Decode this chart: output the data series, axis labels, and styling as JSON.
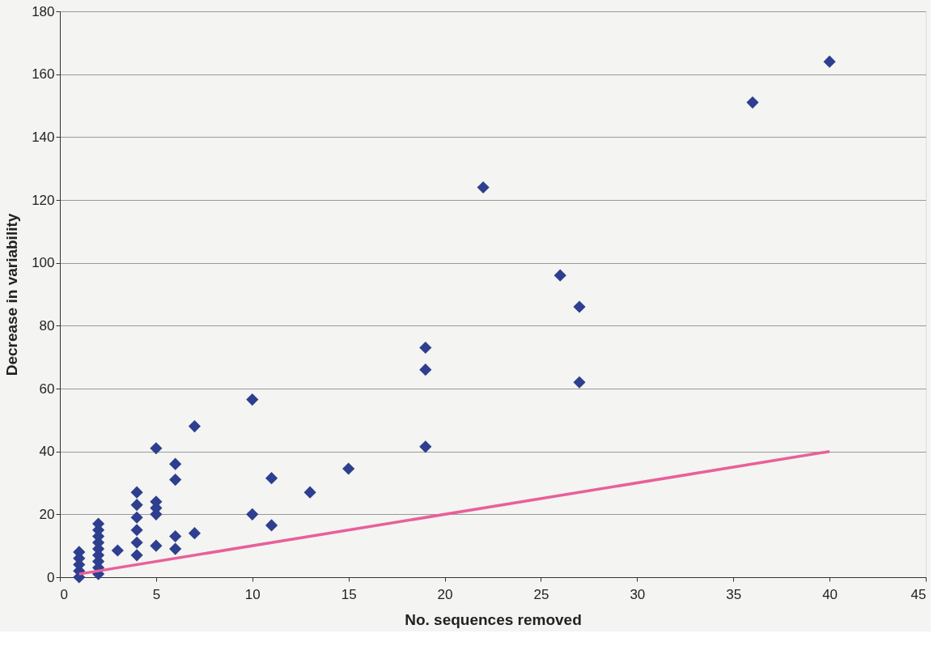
{
  "chart_data": {
    "type": "scatter",
    "xlabel": "No.  sequences  removed",
    "ylabel": "Decrease  in  variability",
    "xlim": [
      0,
      45
    ],
    "xticks": [
      0,
      5,
      10,
      15,
      20,
      25,
      30,
      35,
      40,
      45
    ],
    "ylim": [
      0,
      180
    ],
    "yticks": [
      0,
      20,
      40,
      60,
      80,
      100,
      120,
      140,
      160,
      180
    ],
    "grid": "y",
    "legend": false,
    "series": [
      {
        "color": "#2e3f8f",
        "marker": "diamond",
        "x": [
          1,
          1,
          1,
          1,
          1,
          2,
          2,
          2,
          2,
          2,
          2,
          2,
          2,
          2,
          3,
          4,
          4,
          4,
          4,
          4,
          4,
          5,
          5,
          5,
          5,
          5,
          6,
          6,
          6,
          6,
          7,
          7,
          10,
          10,
          11,
          11,
          13,
          15,
          19,
          19,
          19,
          22,
          26,
          27,
          27,
          36,
          40
        ],
        "values": [
          0,
          2,
          4,
          6,
          8,
          1,
          3,
          5,
          7,
          9,
          11,
          13,
          15,
          17,
          8.5,
          7,
          11,
          15,
          19,
          23,
          27,
          10,
          20,
          22,
          24,
          41,
          9,
          13,
          31,
          36,
          14,
          48,
          56.5,
          20,
          16.5,
          31.5,
          27,
          34.5,
          73,
          66,
          41.5,
          124,
          96,
          86,
          62,
          151,
          164
        ]
      },
      {
        "color": "#e8609a",
        "type": "line",
        "marker": "none",
        "line_style": "solid",
        "x": [
          1,
          40
        ],
        "values": [
          1,
          40
        ]
      }
    ]
  }
}
